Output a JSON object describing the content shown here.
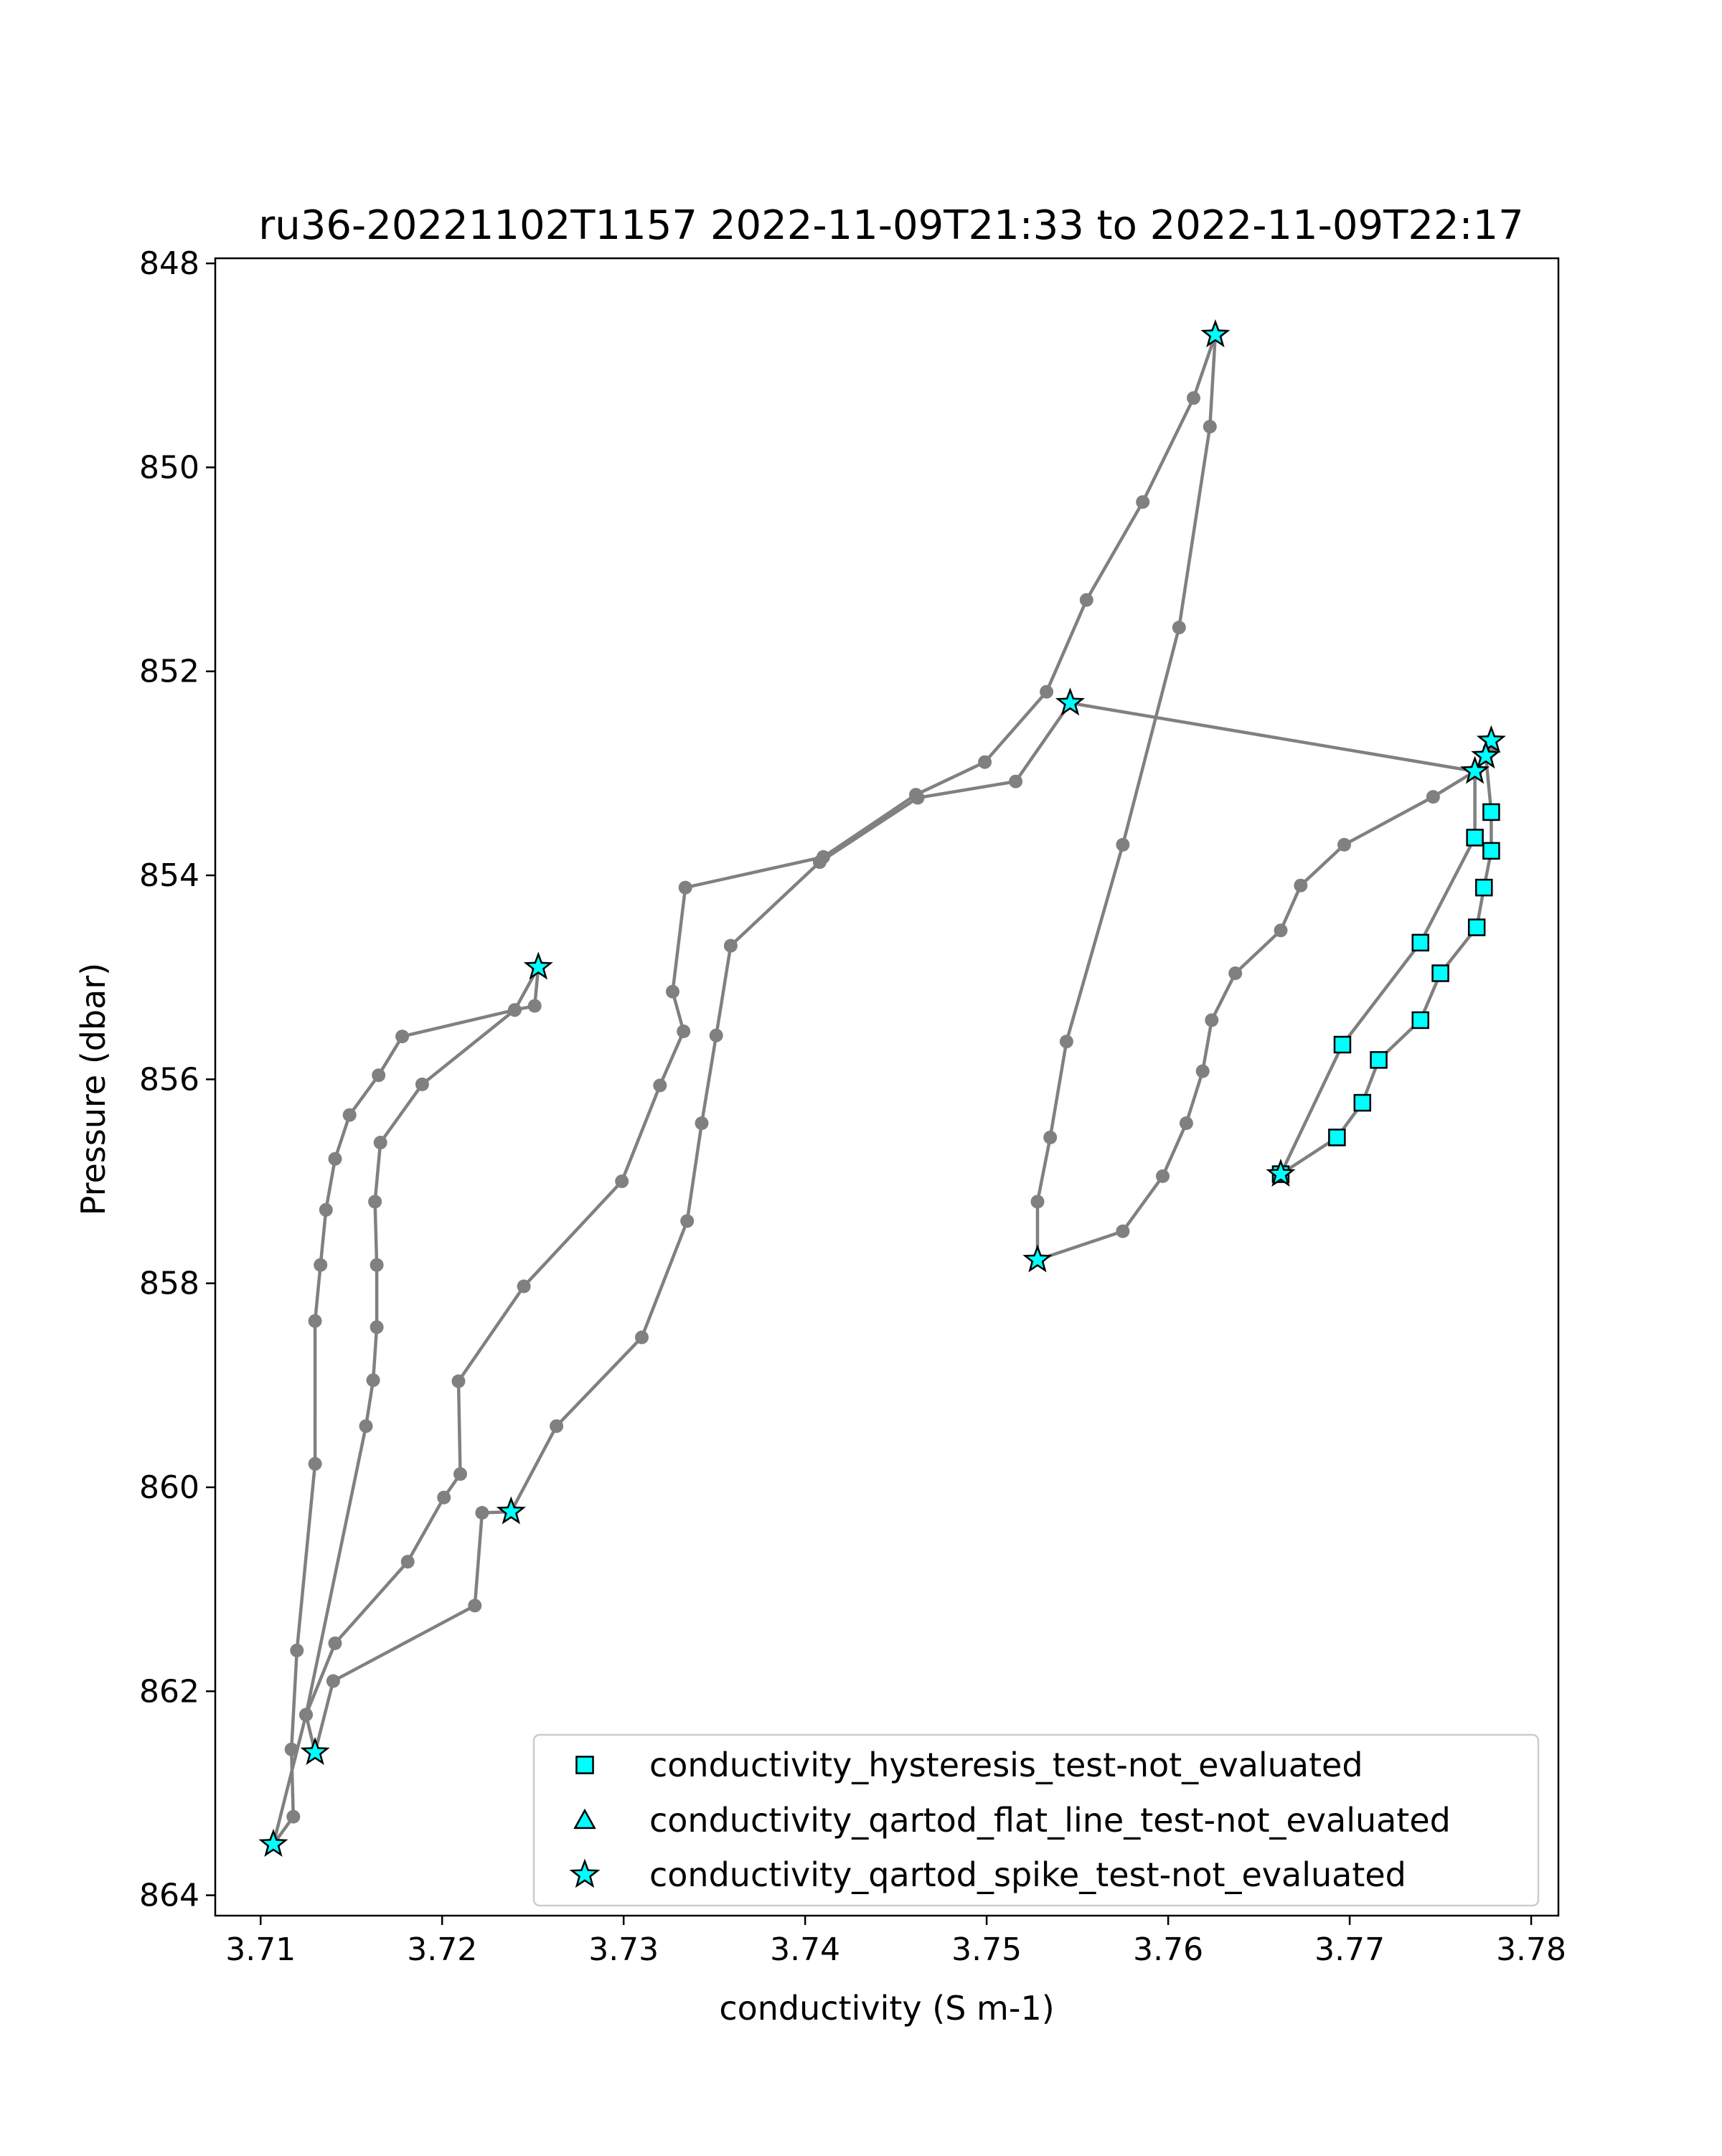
{
  "chart_data": {
    "type": "line",
    "title": "ru36-20221102T1157 2022-11-09T21:33 to 2022-11-09T22:17",
    "xlabel": "conductivity (S m-1)",
    "ylabel": "Pressure (dbar)",
    "xlim": [
      3.7075,
      3.7815
    ],
    "ylim": [
      864.2,
      847.95
    ],
    "y_inverted": true,
    "grid": false,
    "legend_position": "lower right",
    "x_ticks": [
      3.71,
      3.72,
      3.73,
      3.74,
      3.75,
      3.76,
      3.77,
      3.78
    ],
    "x_tick_labels": [
      "3.71",
      "3.72",
      "3.73",
      "3.74",
      "3.75",
      "3.76",
      "3.77",
      "3.78"
    ],
    "y_ticks": [
      848,
      850,
      852,
      854,
      856,
      858,
      860,
      862,
      864
    ],
    "y_tick_labels": [
      "848",
      "850",
      "852",
      "854",
      "856",
      "858",
      "860",
      "862",
      "864"
    ],
    "colors": {
      "line": "#808080",
      "marker_fill": "#00ffff",
      "marker_edge": "#000000"
    },
    "profile": [
      [
        3.7253,
        854.9
      ],
      [
        3.7251,
        855.28
      ],
      [
        3.724,
        855.32
      ],
      [
        3.7178,
        855.58
      ],
      [
        3.7165,
        855.96
      ],
      [
        3.7149,
        856.35
      ],
      [
        3.7141,
        856.78
      ],
      [
        3.7136,
        857.28
      ],
      [
        3.7133,
        857.82
      ],
      [
        3.713,
        858.37
      ],
      [
        3.713,
        859.77
      ],
      [
        3.712,
        861.6
      ],
      [
        3.7117,
        862.57
      ],
      [
        3.7118,
        863.23
      ],
      [
        3.7107,
        863.5
      ],
      [
        3.7125,
        862.23
      ],
      [
        3.7141,
        861.53
      ],
      [
        3.7181,
        860.73
      ],
      [
        3.7201,
        860.1
      ],
      [
        3.721,
        859.87
      ],
      [
        3.7209,
        858.96
      ],
      [
        3.7245,
        858.03
      ],
      [
        3.7299,
        857.0
      ],
      [
        3.732,
        856.06
      ],
      [
        3.7333,
        855.53
      ],
      [
        3.7327,
        855.14
      ],
      [
        3.7334,
        854.12
      ],
      [
        3.741,
        853.82
      ],
      [
        3.7461,
        853.21
      ],
      [
        3.7499,
        852.89
      ],
      [
        3.7533,
        852.2
      ],
      [
        3.7555,
        851.3
      ],
      [
        3.7586,
        850.34
      ],
      [
        3.7614,
        849.32
      ],
      [
        3.7626,
        848.7
      ],
      [
        3.7623,
        849.6
      ],
      [
        3.7606,
        851.57
      ],
      [
        3.7575,
        853.7
      ],
      [
        3.7544,
        855.63
      ],
      [
        3.7535,
        856.57
      ],
      [
        3.7528,
        857.2
      ],
      [
        3.7528,
        857.77
      ],
      [
        3.7575,
        857.49
      ],
      [
        3.7597,
        856.95
      ],
      [
        3.761,
        856.43
      ],
      [
        3.7619,
        855.92
      ],
      [
        3.7624,
        855.42
      ],
      [
        3.7637,
        854.96
      ],
      [
        3.7662,
        854.54
      ],
      [
        3.7673,
        854.1
      ],
      [
        3.7697,
        853.7
      ],
      [
        3.7746,
        853.23
      ],
      [
        3.7769,
        852.98
      ],
      [
        3.7775,
        852.83
      ],
      [
        3.7778,
        852.68
      ],
      [
        3.7777,
        852.76
      ],
      [
        3.7769,
        853.0
      ],
      [
        3.7769,
        853.63
      ],
      [
        3.7739,
        854.66
      ],
      [
        3.7696,
        855.66
      ],
      [
        3.7662,
        856.93
      ],
      [
        3.7693,
        856.57
      ],
      [
        3.7707,
        856.23
      ],
      [
        3.7716,
        855.81
      ],
      [
        3.7739,
        855.42
      ],
      [
        3.775,
        854.96
      ],
      [
        3.777,
        854.51
      ],
      [
        3.7774,
        854.12
      ],
      [
        3.7778,
        853.76
      ],
      [
        3.7778,
        853.38
      ],
      [
        3.7775,
        852.83
      ],
      [
        3.7769,
        852.98
      ],
      [
        3.7546,
        852.31
      ],
      [
        3.7516,
        853.08
      ],
      [
        3.7462,
        853.24
      ],
      [
        3.7408,
        853.87
      ],
      [
        3.7359,
        854.69
      ],
      [
        3.7351,
        855.57
      ],
      [
        3.7343,
        856.43
      ],
      [
        3.7335,
        857.39
      ],
      [
        3.731,
        858.53
      ],
      [
        3.7263,
        859.4
      ],
      [
        3.7238,
        860.24
      ],
      [
        3.7222,
        860.25
      ],
      [
        3.7218,
        861.16
      ],
      [
        3.714,
        861.9
      ],
      [
        3.713,
        862.6
      ],
      [
        3.7125,
        862.23
      ],
      [
        3.7158,
        859.4
      ],
      [
        3.7162,
        858.95
      ],
      [
        3.7164,
        858.43
      ],
      [
        3.7164,
        857.82
      ],
      [
        3.7163,
        857.2
      ],
      [
        3.7166,
        856.62
      ],
      [
        3.7189,
        856.05
      ],
      [
        3.724,
        855.32
      ],
      [
        3.7253,
        854.9
      ]
    ],
    "series": [
      {
        "name": "conductivity_hysteresis_test-not_evaluated",
        "marker": "square",
        "points": [
          [
            3.7778,
            853.38
          ],
          [
            3.7769,
            853.63
          ],
          [
            3.7778,
            853.76
          ],
          [
            3.7774,
            854.12
          ],
          [
            3.7739,
            854.66
          ],
          [
            3.777,
            854.51
          ],
          [
            3.775,
            854.96
          ],
          [
            3.7739,
            855.42
          ],
          [
            3.7696,
            855.66
          ],
          [
            3.7716,
            855.81
          ],
          [
            3.7707,
            856.23
          ],
          [
            3.7693,
            856.57
          ],
          [
            3.7662,
            856.93
          ]
        ]
      },
      {
        "name": "conductivity_qartod_flat_line_test-not_evaluated",
        "marker": "triangle",
        "points": []
      },
      {
        "name": "conductivity_qartod_spike_test-not_evaluated",
        "marker": "star",
        "points": [
          [
            3.7626,
            848.7
          ],
          [
            3.7546,
            852.31
          ],
          [
            3.7778,
            852.68
          ],
          [
            3.7775,
            852.83
          ],
          [
            3.7769,
            852.98
          ],
          [
            3.7253,
            854.9
          ],
          [
            3.7662,
            856.93
          ],
          [
            3.7528,
            857.77
          ],
          [
            3.7238,
            860.24
          ],
          [
            3.713,
            862.6
          ],
          [
            3.7107,
            863.5
          ]
        ]
      }
    ]
  }
}
